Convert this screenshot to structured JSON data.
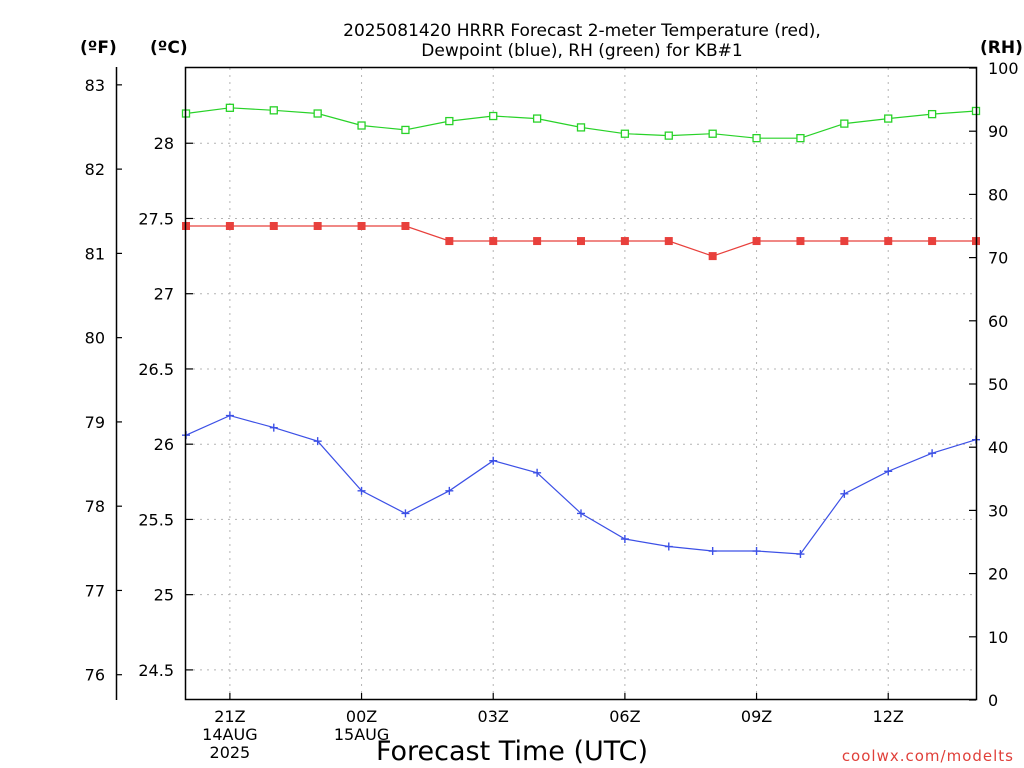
{
  "chart_data": {
    "type": "line",
    "title_lines": [
      "2025081420 HRRR Forecast 2-meter Temperature (red),",
      "Dewpoint (blue), RH (green) for KB#1"
    ],
    "xlabel": "Forecast Time (UTC)",
    "credit": "coolwx.com/modelts",
    "axes": {
      "fahrenheit": {
        "unit_label": "(ºF)",
        "range": [
          75.7,
          83.2
        ],
        "ticks": [
          76,
          77,
          78,
          79,
          80,
          81,
          82,
          83
        ]
      },
      "celsius": {
        "unit_label": "(ºC)",
        "range": [
          24.3,
          28.5
        ],
        "ticks": [
          "24.5",
          "25",
          "25.5",
          "26",
          "26.5",
          "27",
          "27.5",
          "28"
        ]
      },
      "rh": {
        "unit_label": "(RH)",
        "range": [
          0,
          100
        ],
        "ticks": [
          0,
          10,
          20,
          30,
          40,
          50,
          60,
          70,
          80,
          90,
          100
        ]
      }
    },
    "x": [
      "20Z",
      "21Z",
      "22Z",
      "23Z",
      "00Z",
      "01Z",
      "02Z",
      "03Z",
      "04Z",
      "05Z",
      "06Z",
      "07Z",
      "08Z",
      "09Z",
      "10Z",
      "11Z",
      "12Z",
      "13Z",
      "14Z"
    ],
    "x_tick_labels": [
      {
        "hour": 1,
        "lines": [
          "21Z",
          "14AUG",
          "2025"
        ]
      },
      {
        "hour": 4,
        "lines": [
          "00Z",
          "15AUG"
        ]
      },
      {
        "hour": 7,
        "lines": [
          "03Z"
        ]
      },
      {
        "hour": 10,
        "lines": [
          "06Z"
        ]
      },
      {
        "hour": 13,
        "lines": [
          "09Z"
        ]
      },
      {
        "hour": 16,
        "lines": [
          "12Z"
        ]
      }
    ],
    "series": [
      {
        "name": "Temperature",
        "color": "#e8403c",
        "marker": "filled-square",
        "unit": "C",
        "values": [
          27.45,
          27.45,
          27.45,
          27.45,
          27.45,
          27.45,
          27.35,
          27.35,
          27.35,
          27.35,
          27.35,
          27.35,
          27.25,
          27.35,
          27.35,
          27.35,
          27.35,
          27.35,
          27.35
        ]
      },
      {
        "name": "Dewpoint",
        "color": "#3c50e6",
        "marker": "plus",
        "unit": "C",
        "values": [
          26.06,
          26.19,
          26.11,
          26.02,
          25.69,
          25.54,
          25.69,
          25.89,
          25.81,
          25.54,
          25.37,
          25.32,
          25.29,
          25.29,
          25.27,
          25.67,
          25.82,
          25.94,
          26.03
        ]
      },
      {
        "name": "RH",
        "color": "#28d228",
        "marker": "open-square",
        "unit": "%",
        "values": [
          92.8,
          93.7,
          93.3,
          92.8,
          90.9,
          90.2,
          91.6,
          92.4,
          92.0,
          90.6,
          89.6,
          89.3,
          89.6,
          88.9,
          88.9,
          91.2,
          92.0,
          92.7,
          93.2
        ]
      }
    ]
  }
}
